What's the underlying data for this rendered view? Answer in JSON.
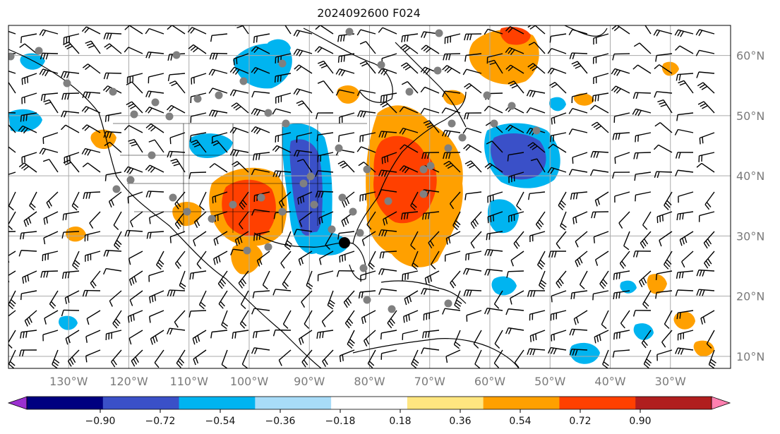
{
  "title": "2024092600 F024",
  "map": {
    "lon_range": [
      -140,
      -20
    ],
    "lat_range": [
      8,
      65
    ],
    "lat_labels": [
      {
        "value": 60,
        "text": "60°N"
      },
      {
        "value": 50,
        "text": "50°N"
      },
      {
        "value": 40,
        "text": "40°N"
      },
      {
        "value": 30,
        "text": "30°N"
      },
      {
        "value": 20,
        "text": "20°N"
      },
      {
        "value": 10,
        "text": "10°N"
      }
    ],
    "lon_labels": [
      {
        "value": -130,
        "text": "130°W"
      },
      {
        "value": -120,
        "text": "120°W"
      },
      {
        "value": -110,
        "text": "110°W"
      },
      {
        "value": -100,
        "text": "100°W"
      },
      {
        "value": -90,
        "text": "90°W"
      },
      {
        "value": -80,
        "text": "80°W"
      },
      {
        "value": -70,
        "text": "70°W"
      },
      {
        "value": -60,
        "text": "60°W"
      },
      {
        "value": -50,
        "text": "50°W"
      },
      {
        "value": -40,
        "text": "40°W"
      },
      {
        "value": -30,
        "text": "30°W"
      }
    ],
    "grid": true
  },
  "colorbar": {
    "extend": "both",
    "under_color": "#9b30d0",
    "over_color": "#ff80b0",
    "colors": [
      "#000080",
      "#3a50c8",
      "#00b4f0",
      "#a8dcf8",
      "#ffffff",
      "#ffe680",
      "#ffa000",
      "#ff4000",
      "#b01e1e"
    ],
    "ticks": [
      "−0.90",
      "−0.72",
      "−0.54",
      "−0.36",
      "−0.18",
      "0.18",
      "0.36",
      "0.54",
      "0.72",
      "0.90"
    ]
  },
  "colors": {
    "grid": "#aaaaaa",
    "coast": "#000000",
    "station": "#808080"
  }
}
